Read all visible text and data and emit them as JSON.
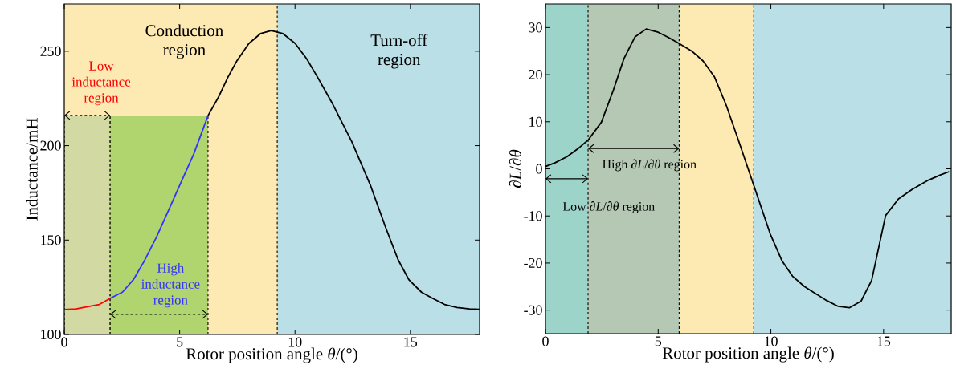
{
  "chart_data": [
    {
      "type": "line",
      "xlabel": "Rotor position angle *θ*/(°)",
      "ylabel": "Inductance/mH",
      "xlim": [
        0,
        18
      ],
      "ylim": [
        100,
        275
      ],
      "xticks": [
        0,
        5,
        10,
        15
      ],
      "yticks": [
        100,
        150,
        200,
        250
      ],
      "bands": [
        {
          "axis": "x",
          "from": 0,
          "to": 9.23,
          "color": "#fde9b2"
        },
        {
          "axis": "x",
          "from": 9.23,
          "to": 18,
          "color": "#badfe6"
        }
      ],
      "ref_lines": [
        {
          "axis": "x",
          "value": 9.23,
          "color": "#000000",
          "line_style": "dashed"
        }
      ],
      "series": [
        {
          "type": "area",
          "x": [
            0,
            1.99
          ],
          "values": [
            216,
            216
          ],
          "color": "#d3d9a3",
          "line_style": "dashed"
        },
        {
          "type": "area",
          "x": [
            1.99,
            6.23
          ],
          "values": [
            216,
            216
          ],
          "color": "#b0d46e",
          "line_style": "dashed"
        },
        {
          "color": "#ff0000",
          "x": [
            0,
            0.51,
            1.05,
            1.52,
            1.99
          ],
          "values": [
            113.2,
            113.5,
            114.8,
            115.9,
            119.1
          ]
        },
        {
          "color": "#3333ff",
          "x": [
            1.99,
            2.52,
            2.99,
            3.46,
            4.0,
            4.54,
            5.07,
            5.61,
            6.23
          ],
          "values": [
            119.1,
            122.4,
            128.9,
            138.7,
            151.7,
            166.3,
            180.9,
            195.5,
            215.9
          ]
        },
        {
          "color": "#000000",
          "x": [
            6.23,
            6.68,
            7.09,
            7.49,
            8.0,
            8.5,
            8.97,
            9.48,
            10.01,
            10.51,
            10.98,
            11.58,
            12.46,
            13.26,
            13.93,
            14.47,
            14.94,
            15.48,
            15.95,
            16.48,
            17.02,
            17.56,
            17.99
          ],
          "values": [
            215.9,
            225.6,
            236.2,
            245.1,
            254.1,
            259.3,
            260.9,
            259.3,
            254.1,
            245.9,
            236.2,
            223.2,
            202.1,
            179.3,
            156.6,
            139.5,
            128.9,
            122.4,
            119.2,
            115.9,
            114.3,
            113.5,
            113.3
          ]
        }
      ],
      "annotations": [
        "Conduction region",
        "Turn-off region",
        "Low inductance region",
        "High inductance region"
      ]
    },
    {
      "type": "line",
      "xlabel": "Rotor position angle *θ*/(°)",
      "ylabel": "∂*L*/∂*θ*",
      "xlim": [
        0,
        18
      ],
      "ylim": [
        -35,
        35
      ],
      "xticks": [
        0,
        5,
        10,
        15
      ],
      "yticks": [
        -30,
        -20,
        -10,
        0,
        10,
        20,
        30
      ],
      "bands": [
        {
          "axis": "x",
          "from": 0,
          "to": 9.24,
          "color": "#fde9b2"
        },
        {
          "axis": "x",
          "from": 9.24,
          "to": 18,
          "color": "#badfe6"
        },
        {
          "axis": "x",
          "from": 0,
          "to": 1.89,
          "color": "#9dd4c9"
        },
        {
          "axis": "x",
          "from": 1.89,
          "to": 5.93,
          "color": "#b4c8b4"
        }
      ],
      "ref_lines": [
        {
          "axis": "x",
          "value": 1.89,
          "color": "#000000",
          "line_style": "dashed"
        },
        {
          "axis": "x",
          "value": 5.93,
          "color": "#000000",
          "line_style": "dashed"
        },
        {
          "axis": "x",
          "value": 9.24,
          "color": "#000000",
          "line_style": "dashed"
        }
      ],
      "series": [
        {
          "color": "#000000",
          "x": [
            0,
            0.43,
            0.96,
            1.42,
            1.89,
            2.48,
            3.01,
            3.48,
            3.97,
            4.47,
            5.0,
            5.46,
            5.93,
            6.52,
            6.99,
            7.49,
            8.02,
            8.58,
            9.24,
            9.97,
            10.5,
            10.96,
            11.49,
            12.02,
            12.49,
            12.99,
            13.48,
            14.0,
            14.47,
            15.09,
            15.66,
            16.26,
            16.99,
            17.52,
            17.91
          ],
          "values": [
            0.5,
            1.3,
            2.6,
            4.2,
            6.1,
            9.9,
            16.7,
            23.4,
            28.0,
            29.7,
            29.0,
            27.9,
            26.6,
            24.9,
            22.9,
            19.6,
            13.5,
            5.8,
            -3.5,
            -13.8,
            -19.6,
            -22.8,
            -25.0,
            -26.6,
            -28.0,
            -29.2,
            -29.5,
            -28.1,
            -23.7,
            -9.9,
            -6.4,
            -4.4,
            -2.4,
            -1.3,
            -0.6
          ]
        }
      ],
      "annotations": [
        {
          "text": "High ∂*L*/∂*θ* region",
          "x": 5.93,
          "y": 4.3
        },
        "Low ∂*L*/∂*θ* region"
      ]
    }
  ]
}
